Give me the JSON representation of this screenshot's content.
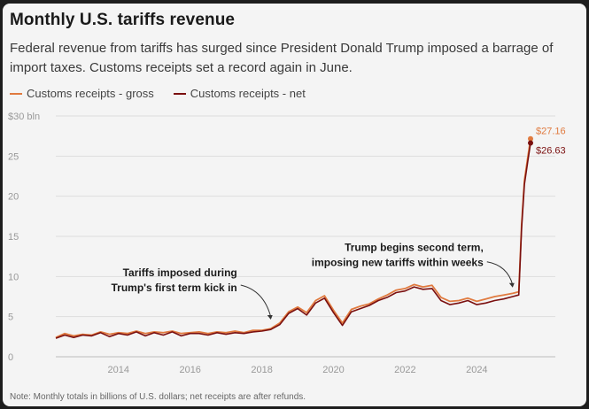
{
  "title": "Monthly U.S. tariffs revenue",
  "subtitle": "Federal revenue from tariffs has surged since President Donald Trump imposed a barrage of import taxes. Customs receipts set a record again in June.",
  "note": "Note: Monthly totals in billions of U.S. dollars; net receipts are after refunds.",
  "colors": {
    "gross": "#e07a3f",
    "net": "#7a0f0f",
    "grid": "#dddddd",
    "background": "#f4f4f4"
  },
  "chart_data": {
    "type": "line",
    "title": "Monthly U.S. tariffs revenue",
    "xlabel": "",
    "ylabel": "",
    "y_unit_label": "$30 bln",
    "ylim": [
      0,
      30
    ],
    "xlim": [
      2012.25,
      2025.5
    ],
    "yticks": [
      0,
      5,
      10,
      15,
      20,
      25,
      30
    ],
    "ytick_labels": [
      "0",
      "5",
      "10",
      "15",
      "20",
      "25",
      "$30 bln"
    ],
    "xticks": [
      2014,
      2016,
      2018,
      2020,
      2022,
      2024
    ],
    "xtick_labels": [
      "2014",
      "2016",
      "2018",
      "2020",
      "2022",
      "2024"
    ],
    "legend": {
      "placement": "top-left"
    },
    "series": [
      {
        "name": "Customs receipts - gross",
        "color": "#e07a3f",
        "x": [
          2012.25,
          2012.5,
          2012.75,
          2013.0,
          2013.25,
          2013.5,
          2013.75,
          2014.0,
          2014.25,
          2014.5,
          2014.75,
          2015.0,
          2015.25,
          2015.5,
          2015.75,
          2016.0,
          2016.25,
          2016.5,
          2016.75,
          2017.0,
          2017.25,
          2017.5,
          2017.75,
          2018.0,
          2018.25,
          2018.5,
          2018.75,
          2019.0,
          2019.25,
          2019.5,
          2019.75,
          2020.0,
          2020.25,
          2020.5,
          2020.75,
          2021.0,
          2021.25,
          2021.5,
          2021.75,
          2022.0,
          2022.25,
          2022.5,
          2022.75,
          2023.0,
          2023.25,
          2023.5,
          2023.75,
          2024.0,
          2024.25,
          2024.5,
          2024.75,
          2025.0,
          2025.17,
          2025.25,
          2025.33,
          2025.42,
          2025.5
        ],
        "values": [
          2.4,
          2.9,
          2.6,
          2.8,
          2.7,
          3.1,
          2.8,
          3.0,
          2.9,
          3.2,
          2.9,
          3.1,
          3.0,
          3.2,
          2.9,
          3.0,
          3.1,
          2.9,
          3.1,
          3.0,
          3.2,
          3.0,
          3.3,
          3.3,
          3.5,
          4.2,
          5.6,
          6.2,
          5.5,
          7.0,
          7.6,
          5.8,
          4.2,
          5.9,
          6.3,
          6.6,
          7.2,
          7.7,
          8.3,
          8.5,
          9.0,
          8.7,
          8.9,
          7.4,
          6.9,
          7.0,
          7.3,
          6.9,
          7.2,
          7.5,
          7.7,
          7.9,
          8.1,
          16.5,
          22.0,
          24.8,
          27.16
        ],
        "end_label": "$27.16"
      },
      {
        "name": "Customs receipts - net",
        "color": "#7a0f0f",
        "x": [
          2012.25,
          2012.5,
          2012.75,
          2013.0,
          2013.25,
          2013.5,
          2013.75,
          2014.0,
          2014.25,
          2014.5,
          2014.75,
          2015.0,
          2015.25,
          2015.5,
          2015.75,
          2016.0,
          2016.25,
          2016.5,
          2016.75,
          2017.0,
          2017.25,
          2017.5,
          2017.75,
          2018.0,
          2018.25,
          2018.5,
          2018.75,
          2019.0,
          2019.25,
          2019.5,
          2019.75,
          2020.0,
          2020.25,
          2020.5,
          2020.75,
          2021.0,
          2021.25,
          2021.5,
          2021.75,
          2022.0,
          2022.25,
          2022.5,
          2022.75,
          2023.0,
          2023.25,
          2023.5,
          2023.75,
          2024.0,
          2024.25,
          2024.5,
          2024.75,
          2025.0,
          2025.17,
          2025.25,
          2025.33,
          2025.42,
          2025.5
        ],
        "values": [
          2.3,
          2.7,
          2.4,
          2.7,
          2.6,
          3.0,
          2.5,
          2.9,
          2.7,
          3.1,
          2.6,
          3.0,
          2.7,
          3.1,
          2.6,
          2.9,
          2.9,
          2.7,
          3.0,
          2.8,
          3.0,
          2.9,
          3.1,
          3.2,
          3.4,
          4.0,
          5.4,
          6.0,
          5.2,
          6.7,
          7.3,
          5.5,
          3.9,
          5.6,
          6.0,
          6.4,
          7.0,
          7.4,
          8.0,
          8.2,
          8.7,
          8.4,
          8.5,
          7.0,
          6.5,
          6.7,
          7.0,
          6.5,
          6.7,
          7.0,
          7.2,
          7.5,
          7.7,
          16.0,
          21.5,
          24.3,
          26.63
        ],
        "end_label": "$26.63"
      }
    ],
    "annotations": [
      {
        "lines": [
          "Tariffs imposed during",
          "Trump's first term kick in"
        ],
        "x": 2018.3,
        "y": 4.3
      },
      {
        "lines": [
          "Trump begins second term,",
          "imposing new tariffs within weeks"
        ],
        "x": 2025.05,
        "y": 8.3
      }
    ]
  }
}
